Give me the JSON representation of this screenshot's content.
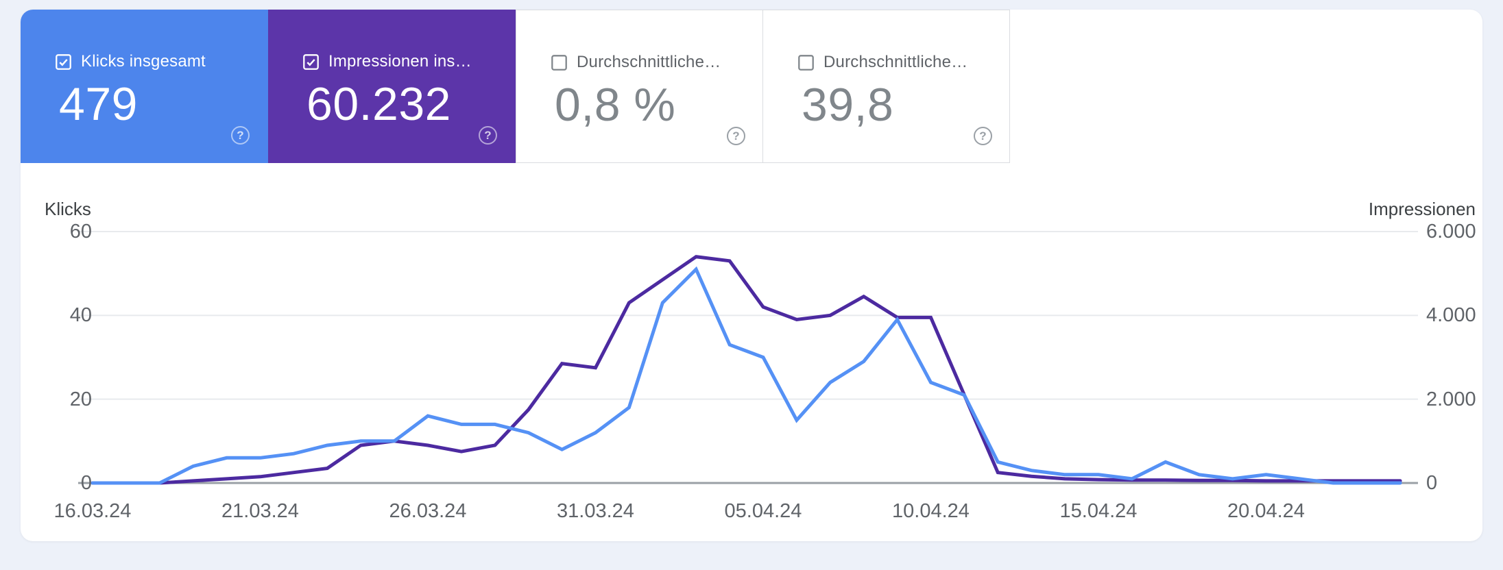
{
  "cards": [
    {
      "label": "Klicks insgesamt",
      "value": "479",
      "selected": true,
      "color": "#4d85ec",
      "help_glyph": "?"
    },
    {
      "label": "Impressionen ins…",
      "value": "60.232",
      "selected": true,
      "color": "#5c35a9",
      "help_glyph": "?"
    },
    {
      "label": "Durchschnittliche…",
      "value": "0,8 %",
      "selected": false,
      "color": "#ffffff",
      "help_glyph": "?"
    },
    {
      "label": "Durchschnittliche…",
      "value": "39,8",
      "selected": false,
      "color": "#ffffff",
      "help_glyph": "?"
    }
  ],
  "chart_data": {
    "type": "line",
    "title": "",
    "x": [
      "16.03.24",
      "17.03.24",
      "18.03.24",
      "19.03.24",
      "20.03.24",
      "21.03.24",
      "22.03.24",
      "23.03.24",
      "24.03.24",
      "25.03.24",
      "26.03.24",
      "27.03.24",
      "28.03.24",
      "29.03.24",
      "30.03.24",
      "31.03.24",
      "01.04.24",
      "02.04.24",
      "03.04.24",
      "04.04.24",
      "05.04.24",
      "06.04.24",
      "07.04.24",
      "08.04.24",
      "09.04.24",
      "10.04.24",
      "11.04.24",
      "12.04.24",
      "13.04.24",
      "14.04.24",
      "15.04.24",
      "16.04.24",
      "17.04.24",
      "18.04.24",
      "19.04.24",
      "20.04.24",
      "21.04.24",
      "22.04.24",
      "23.04.24",
      "24.04.24"
    ],
    "series": [
      {
        "name": "Klicks",
        "axis": "left",
        "color": "#5591f5",
        "values": [
          0,
          0,
          0,
          4,
          6,
          6,
          7,
          9,
          10,
          10,
          16,
          14,
          14,
          12,
          8,
          12,
          18,
          43,
          51,
          33,
          30,
          15,
          24,
          29,
          39,
          24,
          21,
          5,
          3,
          2,
          2,
          1,
          5,
          2,
          1,
          2,
          1,
          0,
          0,
          0
        ]
      },
      {
        "name": "Impressionen",
        "axis": "right",
        "color": "#4c2aa0",
        "values": [
          0,
          0,
          0,
          50,
          100,
          150,
          250,
          350,
          900,
          1000,
          900,
          750,
          900,
          1750,
          2850,
          2750,
          4300,
          4850,
          5400,
          5300,
          4200,
          3900,
          4000,
          4450,
          3950,
          3950,
          2100,
          250,
          160,
          100,
          80,
          70,
          70,
          60,
          60,
          50,
          50,
          50,
          50,
          50
        ]
      }
    ],
    "left_axis": {
      "label": "Klicks",
      "ticks": [
        "0",
        "20",
        "40",
        "60"
      ],
      "max": 60
    },
    "right_axis": {
      "label": "Impressionen",
      "ticks": [
        "0",
        "2.000",
        "4.000",
        "6.000"
      ],
      "max": 6000
    },
    "x_tick_labels": [
      "16.03.24",
      "21.03.24",
      "26.03.24",
      "31.03.24",
      "05.04.24",
      "10.04.24",
      "15.04.24",
      "20.04.24"
    ],
    "grid": true,
    "legend_position": "none"
  }
}
